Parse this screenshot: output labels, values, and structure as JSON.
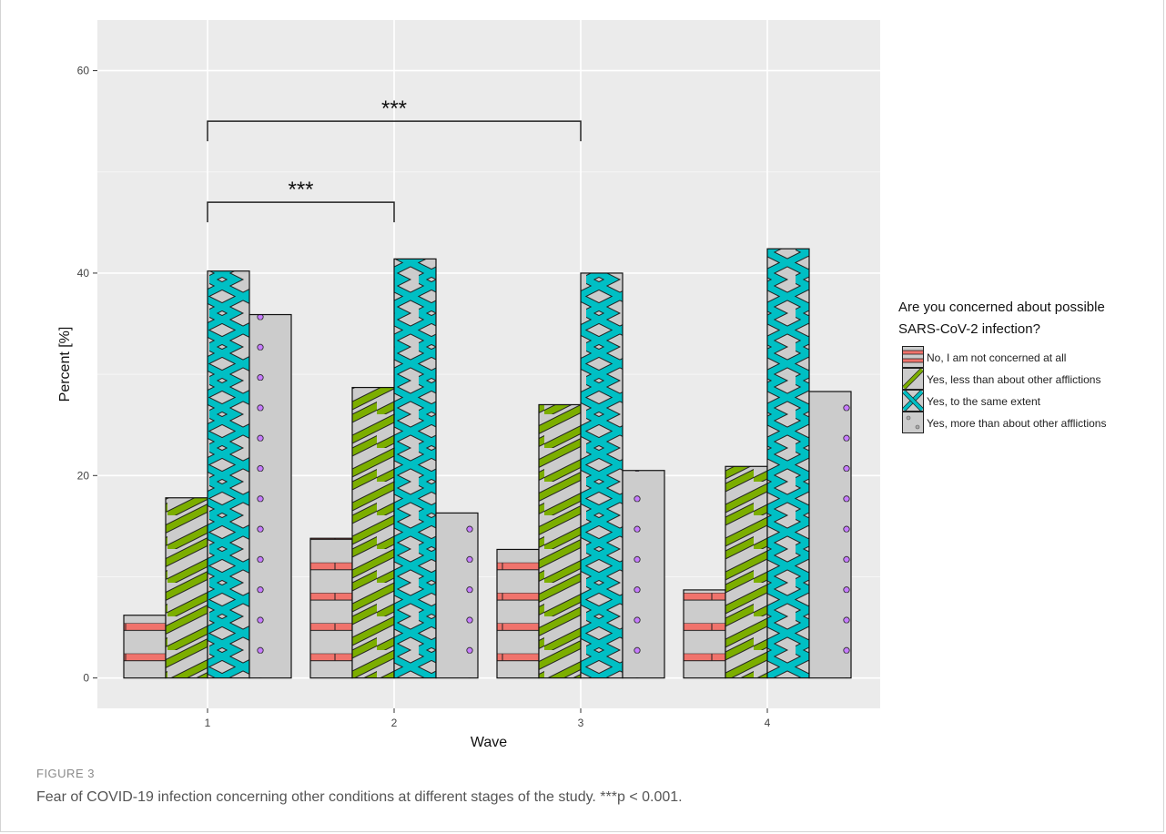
{
  "chart_data": {
    "type": "bar",
    "xlabel": "Wave",
    "ylabel": "Percent [%]",
    "categories": [
      "1",
      "2",
      "3",
      "4"
    ],
    "ylim": [
      -3,
      65
    ],
    "yticks": [
      0,
      20,
      40,
      60
    ],
    "grid": true,
    "legend_position": "right",
    "legend_title_lines": [
      "Are you concerned about possible",
      "SARS-CoV-2 infection?"
    ],
    "series": [
      {
        "name": "No, I am not concerned at all",
        "values": [
          6.2,
          13.8,
          12.7,
          8.7
        ],
        "pattern": "stripe",
        "pattern_color": "#f0736c"
      },
      {
        "name": "Yes, less than about other afflictions",
        "values": [
          17.8,
          28.7,
          27.0,
          20.9
        ],
        "pattern": "diagonal",
        "pattern_color": "#7cae00"
      },
      {
        "name": "Yes, to the same extent",
        "values": [
          40.2,
          41.4,
          40.0,
          42.4
        ],
        "pattern": "crosshatch",
        "pattern_color": "#00bfc4"
      },
      {
        "name": "Yes, more than about other afflictions",
        "values": [
          35.9,
          16.3,
          20.5,
          28.3
        ],
        "pattern": "dots",
        "pattern_color": "#c77cff"
      }
    ],
    "significance_brackets": [
      {
        "from": "1",
        "to": "2",
        "y": 47,
        "label": "***"
      },
      {
        "from": "1",
        "to": "3",
        "y": 55,
        "label": "***"
      }
    ]
  },
  "caption": {
    "label": "FIGURE 3",
    "text": "Fear of COVID-19 infection concerning other conditions at different stages of the study. ***p < 0.001."
  }
}
